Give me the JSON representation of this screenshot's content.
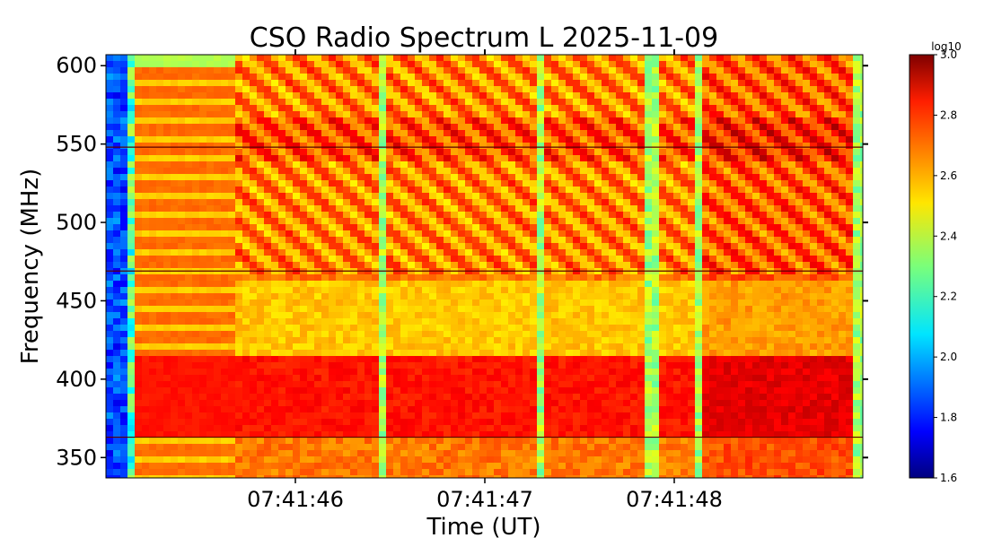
{
  "chart_data": {
    "type": "heatmap",
    "title": "CSO Radio Spectrum L 2025-11-09",
    "xlabel": "Time (UT)",
    "ylabel": "Frequency (MHz)",
    "x_tick_labels": [
      "07:41:46",
      "07:41:47",
      "07:41:48"
    ],
    "y_ticks": [
      350,
      400,
      450,
      500,
      550,
      600
    ],
    "ylim": [
      337,
      607
    ],
    "colorbar": {
      "label": "log10",
      "min": 1.6,
      "max": 3.0,
      "ticks": [
        "1.6",
        "1.8",
        "2.0",
        "2.2",
        "2.4",
        "2.6",
        "2.8",
        "3.0"
      ],
      "colormap": "jet"
    },
    "features": {
      "bright_band_mhz": [
        365,
        418
      ],
      "horizontal_lines_mhz": [
        363,
        469,
        548
      ]
    }
  }
}
